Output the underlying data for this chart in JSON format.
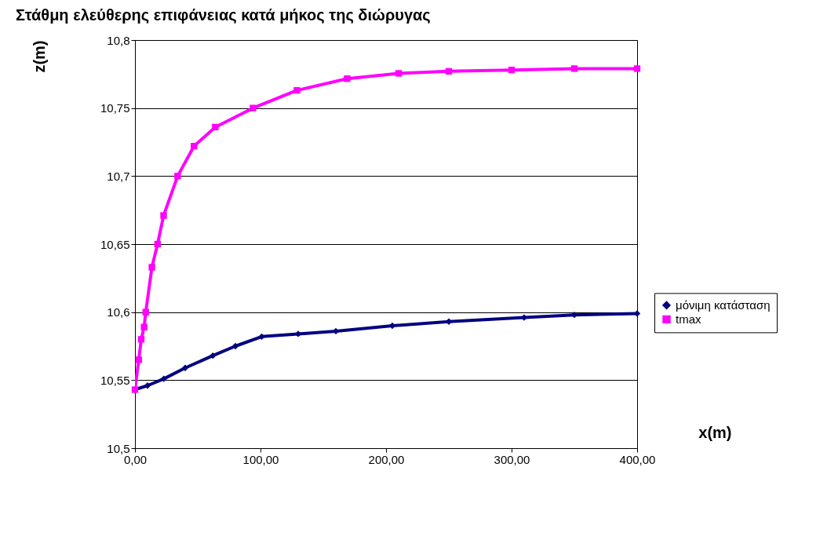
{
  "chart_data": {
    "type": "line",
    "title": "Στάθμη ελεύθερης επιφάνειας κατά μήκος της διώρυγας",
    "xlabel": "x(m)",
    "ylabel": "z(m)",
    "xlim": [
      0,
      400
    ],
    "xticks": [
      {
        "value": 0,
        "label": "0,00"
      },
      {
        "value": 100,
        "label": "100,00"
      },
      {
        "value": 200,
        "label": "200,00"
      },
      {
        "value": 300,
        "label": "300,00"
      },
      {
        "value": 400,
        "label": "400,00"
      }
    ],
    "ylim": [
      10.5,
      10.8
    ],
    "yticks": [
      {
        "value": 10.5,
        "label": "10,5"
      },
      {
        "value": 10.55,
        "label": "10,55"
      },
      {
        "value": 10.6,
        "label": "10,6"
      },
      {
        "value": 10.65,
        "label": "10,65"
      },
      {
        "value": 10.7,
        "label": "10,7"
      },
      {
        "value": 10.75,
        "label": "10,75"
      },
      {
        "value": 10.8,
        "label": "10,8"
      }
    ],
    "grid": "y",
    "legend": "right",
    "series": [
      {
        "name": "μόνιμη κατάσταση",
        "color": "#000080",
        "marker": "diamond",
        "x": [
          0,
          10,
          23,
          40,
          62,
          80,
          101,
          130,
          160,
          205,
          250,
          310,
          350,
          400
        ],
        "values": [
          10.543,
          10.546,
          10.551,
          10.559,
          10.568,
          10.575,
          10.582,
          10.584,
          10.586,
          10.59,
          10.593,
          10.596,
          10.598,
          10.599
        ]
      },
      {
        "name": "tmax",
        "color": "#ff00ff",
        "marker": "square",
        "x": [
          0,
          3,
          5,
          7.3,
          8.6,
          13.5,
          18,
          22.8,
          34,
          47,
          64,
          94,
          129,
          169,
          210,
          250,
          300,
          350,
          400
        ],
        "values": [
          10.543,
          10.565,
          10.58,
          10.589,
          10.6,
          10.633,
          10.65,
          10.671,
          10.7,
          10.722,
          10.736,
          10.75,
          10.763,
          10.7716,
          10.7755,
          10.777,
          10.778,
          10.779,
          10.779
        ]
      }
    ]
  }
}
